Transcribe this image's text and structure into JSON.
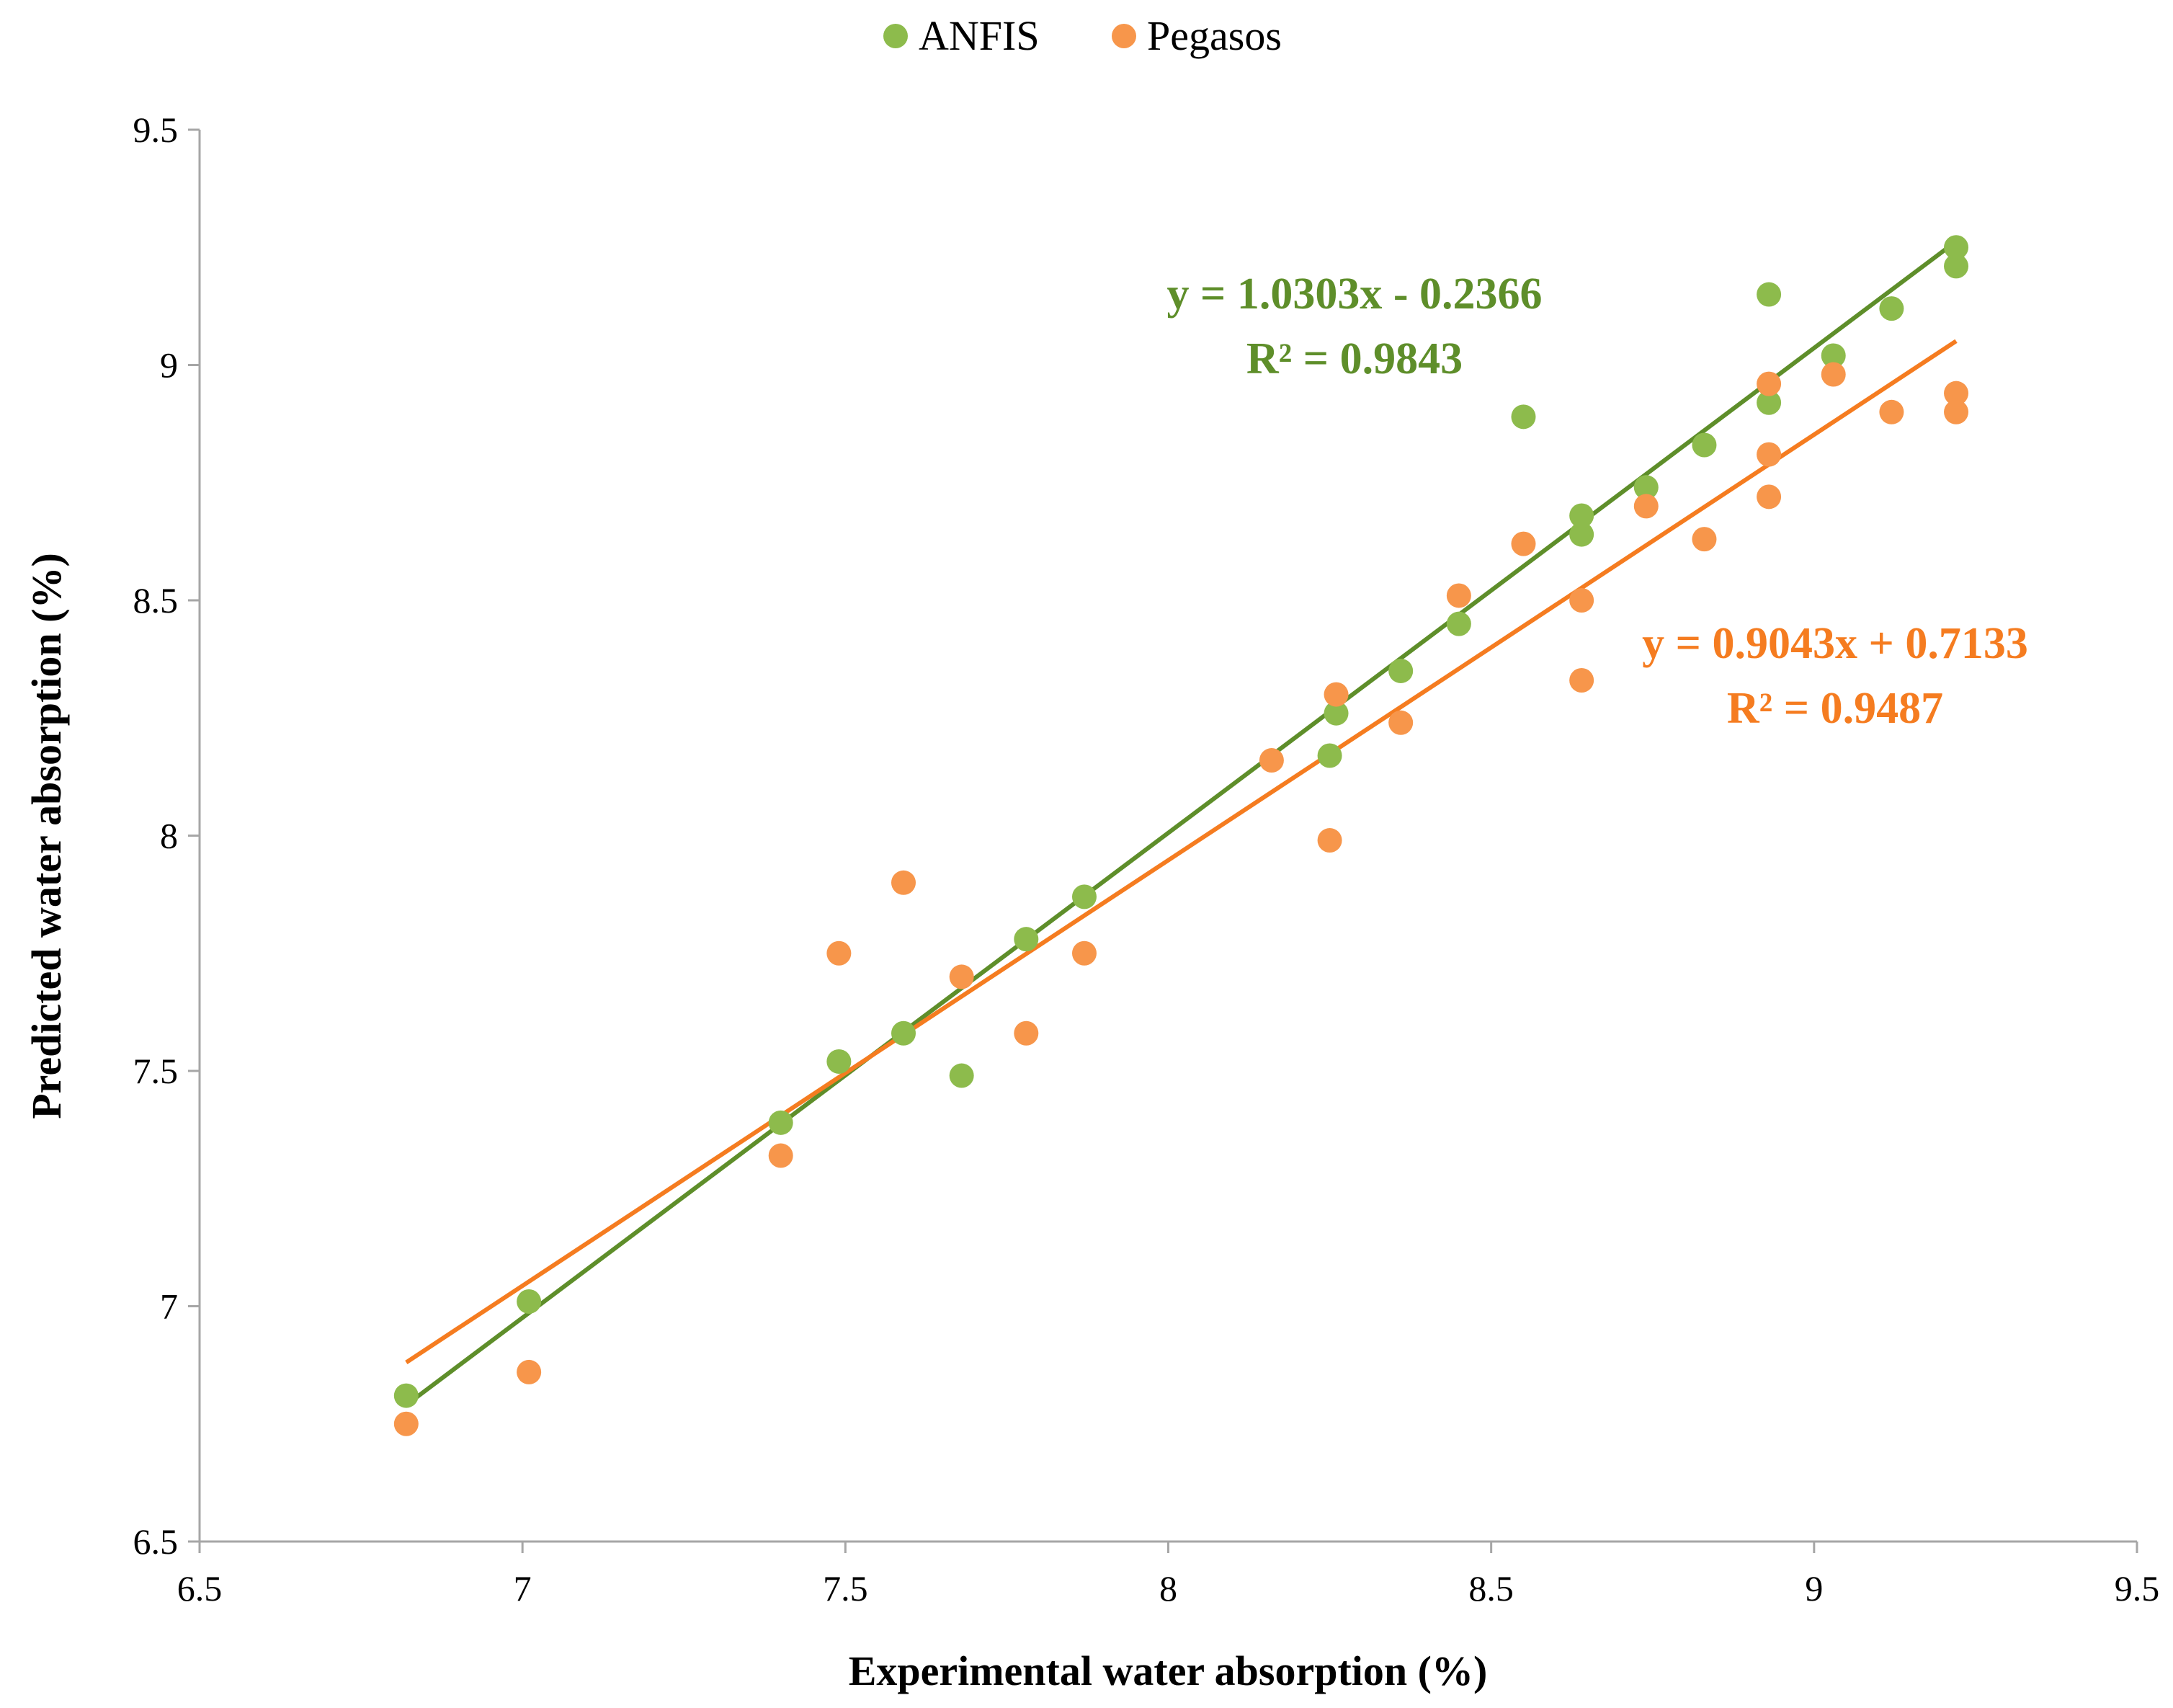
{
  "chart_data": {
    "type": "scatter",
    "title": "",
    "xlabel": "Experimental water absorption (%)",
    "ylabel": "Predicted water absorption (%)",
    "xlim": [
      6.5,
      9.5
    ],
    "ylim": [
      6.5,
      9.5
    ],
    "xticks": [
      6.5,
      7,
      7.5,
      8,
      8.5,
      9,
      9.5
    ],
    "yticks": [
      6.5,
      7,
      7.5,
      8,
      8.5,
      9,
      9.5
    ],
    "xtick_labels": [
      "6.5",
      "7",
      "7.5",
      "8",
      "8.5",
      "9",
      "9.5"
    ],
    "ytick_labels": [
      "6.5",
      "7",
      "7.5",
      "8",
      "8.5",
      "9",
      "9.5"
    ],
    "grid": false,
    "legend_position": "top-center",
    "series": [
      {
        "name": "ANFIS",
        "marker_color": "#8DBB4C",
        "trendline_color": "#5E8E2A",
        "equation": "y = 1.0303x - 0.2366",
        "r2": "R² = 0.9843",
        "trendline": {
          "slope": 1.0303,
          "intercept": -0.2366,
          "x_range": [
            6.82,
            9.22
          ]
        },
        "points": [
          [
            6.82,
            6.81
          ],
          [
            7.01,
            7.01
          ],
          [
            7.4,
            7.39
          ],
          [
            7.49,
            7.52
          ],
          [
            7.59,
            7.58
          ],
          [
            7.68,
            7.49
          ],
          [
            7.78,
            7.78
          ],
          [
            7.87,
            7.87
          ],
          [
            8.25,
            8.17
          ],
          [
            8.26,
            8.26
          ],
          [
            8.36,
            8.35
          ],
          [
            8.45,
            8.45
          ],
          [
            8.55,
            8.89
          ],
          [
            8.64,
            8.64
          ],
          [
            8.64,
            8.68
          ],
          [
            8.74,
            8.74
          ],
          [
            8.83,
            8.83
          ],
          [
            8.93,
            8.92
          ],
          [
            8.93,
            9.15
          ],
          [
            9.03,
            9.02
          ],
          [
            9.12,
            9.12
          ],
          [
            9.22,
            9.21
          ],
          [
            9.22,
            9.25
          ]
        ]
      },
      {
        "name": "Pegasos",
        "marker_color": "#F7964B",
        "trendline_color": "#F57C20",
        "equation": "y = 0.9043x + 0.7133",
        "r2": "R² = 0.9487",
        "trendline": {
          "slope": 0.9043,
          "intercept": 0.7133,
          "x_range": [
            6.82,
            9.22
          ]
        },
        "points": [
          [
            6.82,
            6.75
          ],
          [
            7.01,
            6.86
          ],
          [
            7.4,
            7.32
          ],
          [
            7.49,
            7.75
          ],
          [
            7.59,
            7.9
          ],
          [
            7.68,
            7.7
          ],
          [
            7.78,
            7.58
          ],
          [
            7.87,
            7.75
          ],
          [
            8.16,
            8.16
          ],
          [
            8.25,
            7.99
          ],
          [
            8.26,
            8.3
          ],
          [
            8.36,
            8.24
          ],
          [
            8.45,
            8.51
          ],
          [
            8.55,
            8.62
          ],
          [
            8.64,
            8.5
          ],
          [
            8.64,
            8.33
          ],
          [
            8.74,
            8.7
          ],
          [
            8.83,
            8.63
          ],
          [
            8.93,
            8.72
          ],
          [
            8.93,
            8.81
          ],
          [
            8.93,
            8.96
          ],
          [
            9.03,
            8.98
          ],
          [
            9.12,
            8.9
          ],
          [
            9.22,
            8.94
          ],
          [
            9.22,
            8.9
          ]
        ]
      }
    ]
  }
}
